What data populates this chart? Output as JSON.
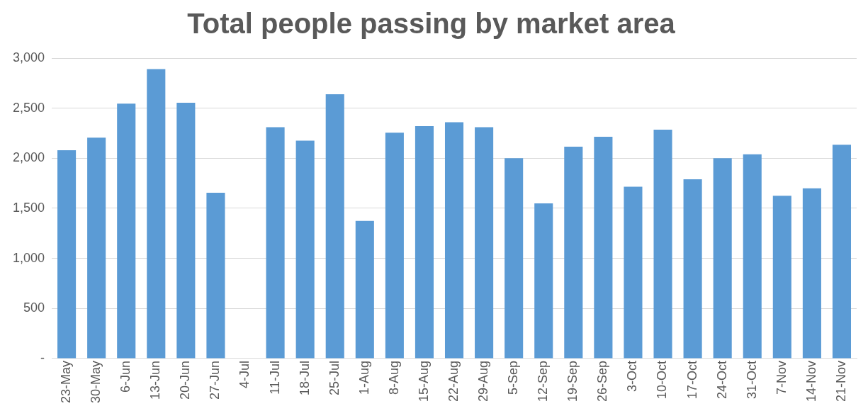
{
  "chart_data": {
    "type": "bar",
    "title": "Total people passing by market area",
    "categories": [
      "23-May",
      "30-May",
      "6-Jun",
      "13-Jun",
      "20-Jun",
      "27-Jun",
      "4-Jul",
      "11-Jul",
      "18-Jul",
      "25-Jul",
      "1-Aug",
      "8-Aug",
      "15-Aug",
      "22-Aug",
      "29-Aug",
      "5-Sep",
      "12-Sep",
      "19-Sep",
      "26-Sep",
      "3-Oct",
      "10-Oct",
      "17-Oct",
      "24-Oct",
      "31-Oct",
      "7-Nov",
      "14-Nov",
      "21-Nov"
    ],
    "values": [
      2080,
      2205,
      2545,
      2890,
      2555,
      1655,
      null,
      2310,
      2175,
      2640,
      1375,
      2255,
      2320,
      2360,
      2310,
      2000,
      1550,
      2115,
      2215,
      1715,
      2285,
      1790,
      2000,
      2040,
      1625,
      1700,
      2135
    ],
    "color": "#5b9bd5",
    "ylim": [
      0,
      3000
    ],
    "yticks": [
      {
        "value": 0,
        "label": "-"
      },
      {
        "value": 500,
        "label": "500"
      },
      {
        "value": 1000,
        "label": "1,000"
      },
      {
        "value": 1500,
        "label": "1,500"
      },
      {
        "value": 2000,
        "label": "2,000"
      },
      {
        "value": 2500,
        "label": "2,500"
      },
      {
        "value": 3000,
        "label": "3,000"
      }
    ],
    "grid": "y",
    "legend": false
  }
}
